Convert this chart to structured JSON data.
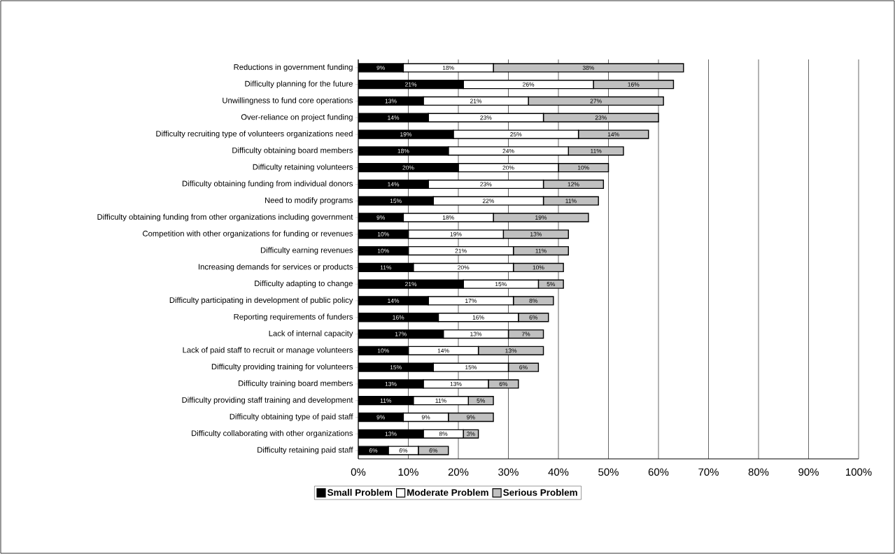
{
  "chart_data": {
    "type": "bar",
    "orientation": "horizontal",
    "stacked": true,
    "categories": [
      "Reductions in government funding",
      "Difficulty planning for the future",
      "Unwillingness to fund core operations",
      "Over-reliance on project funding",
      "Difficulty recruiting type of volunteers organizations need",
      "Difficulty obtaining board members",
      "Difficulty retaining volunteers",
      "Difficulty obtaining funding from individual donors",
      "Need to modify programs",
      "Difficulty obtaining funding from other organizations including government",
      "Competition with other organizations for funding or revenues",
      "Difficulty earning revenues",
      "Increasing demands for services or products",
      "Difficulty adapting to change",
      "Difficulty participating in development of public policy",
      "Reporting requirements of funders",
      "Lack of internal capacity",
      "Lack of paid staff to recruit or manage volunteers",
      "Difficulty providing training for volunteers",
      "Difficulty training board members",
      "Difficulty providing staff training and development",
      "Difficulty obtaining type of paid staff",
      "Difficulty collaborating with other organizations",
      "Difficulty retaining paid staff"
    ],
    "series": [
      {
        "name": "Small Problem",
        "color": "#000000",
        "values": [
          9,
          21,
          13,
          14,
          19,
          18,
          20,
          14,
          15,
          9,
          10,
          10,
          11,
          21,
          14,
          16,
          17,
          10,
          15,
          13,
          11,
          9,
          13,
          6
        ],
        "value_labels": [
          "9%",
          "21%",
          "13%",
          "14%",
          "19%",
          "18%",
          "20%",
          "14%",
          "15%",
          "9%",
          "10%",
          "10%",
          "11%",
          "21%",
          "14%",
          "16%",
          "17%",
          "10%",
          "15%",
          "13%",
          "11%",
          "9%",
          "13%",
          "6%"
        ]
      },
      {
        "name": "Moderate Problem",
        "color": "#ffffff",
        "values": [
          18,
          26,
          21,
          23,
          25,
          24,
          20,
          23,
          22,
          18,
          19,
          21,
          20,
          15,
          17,
          16,
          13,
          14,
          15,
          13,
          11,
          9,
          8,
          6
        ],
        "value_labels": [
          "18%",
          "26%",
          "21%",
          "23%",
          "25%",
          "24%",
          "20%",
          "23%",
          "22%",
          "18%",
          "19%",
          "21%",
          "20%",
          "15%",
          "17%",
          "16%",
          "13%",
          "14%",
          "15%",
          "13%",
          "11%",
          "9%",
          "8%",
          "6%"
        ]
      },
      {
        "name": "Serious Problem",
        "color": "#c0c0c0",
        "values": [
          38,
          16,
          27,
          23,
          14,
          11,
          10,
          12,
          11,
          19,
          13,
          11,
          10,
          5,
          8,
          6,
          7,
          13,
          6,
          6,
          5,
          9,
          3,
          6
        ],
        "value_labels": [
          "38%",
          "16%",
          "27%",
          "23%",
          "14%",
          "11%",
          "10%",
          "12%",
          "11%",
          "19%",
          "13%",
          "11%",
          "10%",
          "5%",
          "8%",
          "6%",
          "7%",
          "13%",
          "6%",
          "6%",
          "5%",
          "9%",
          "3%",
          "6%"
        ]
      }
    ],
    "xlim": [
      0,
      100
    ],
    "xticks": [
      {
        "value": 0,
        "label": "0%"
      },
      {
        "value": 10,
        "label": "10%"
      },
      {
        "value": 20,
        "label": "20%"
      },
      {
        "value": 30,
        "label": "30%"
      },
      {
        "value": 40,
        "label": "40%"
      },
      {
        "value": 50,
        "label": "50%"
      },
      {
        "value": 60,
        "label": "60%"
      },
      {
        "value": 70,
        "label": "70%"
      },
      {
        "value": 80,
        "label": "80%"
      },
      {
        "value": 90,
        "label": "90%"
      },
      {
        "value": 100,
        "label": "100%"
      }
    ],
    "grid": "x",
    "legend": "bottom"
  }
}
